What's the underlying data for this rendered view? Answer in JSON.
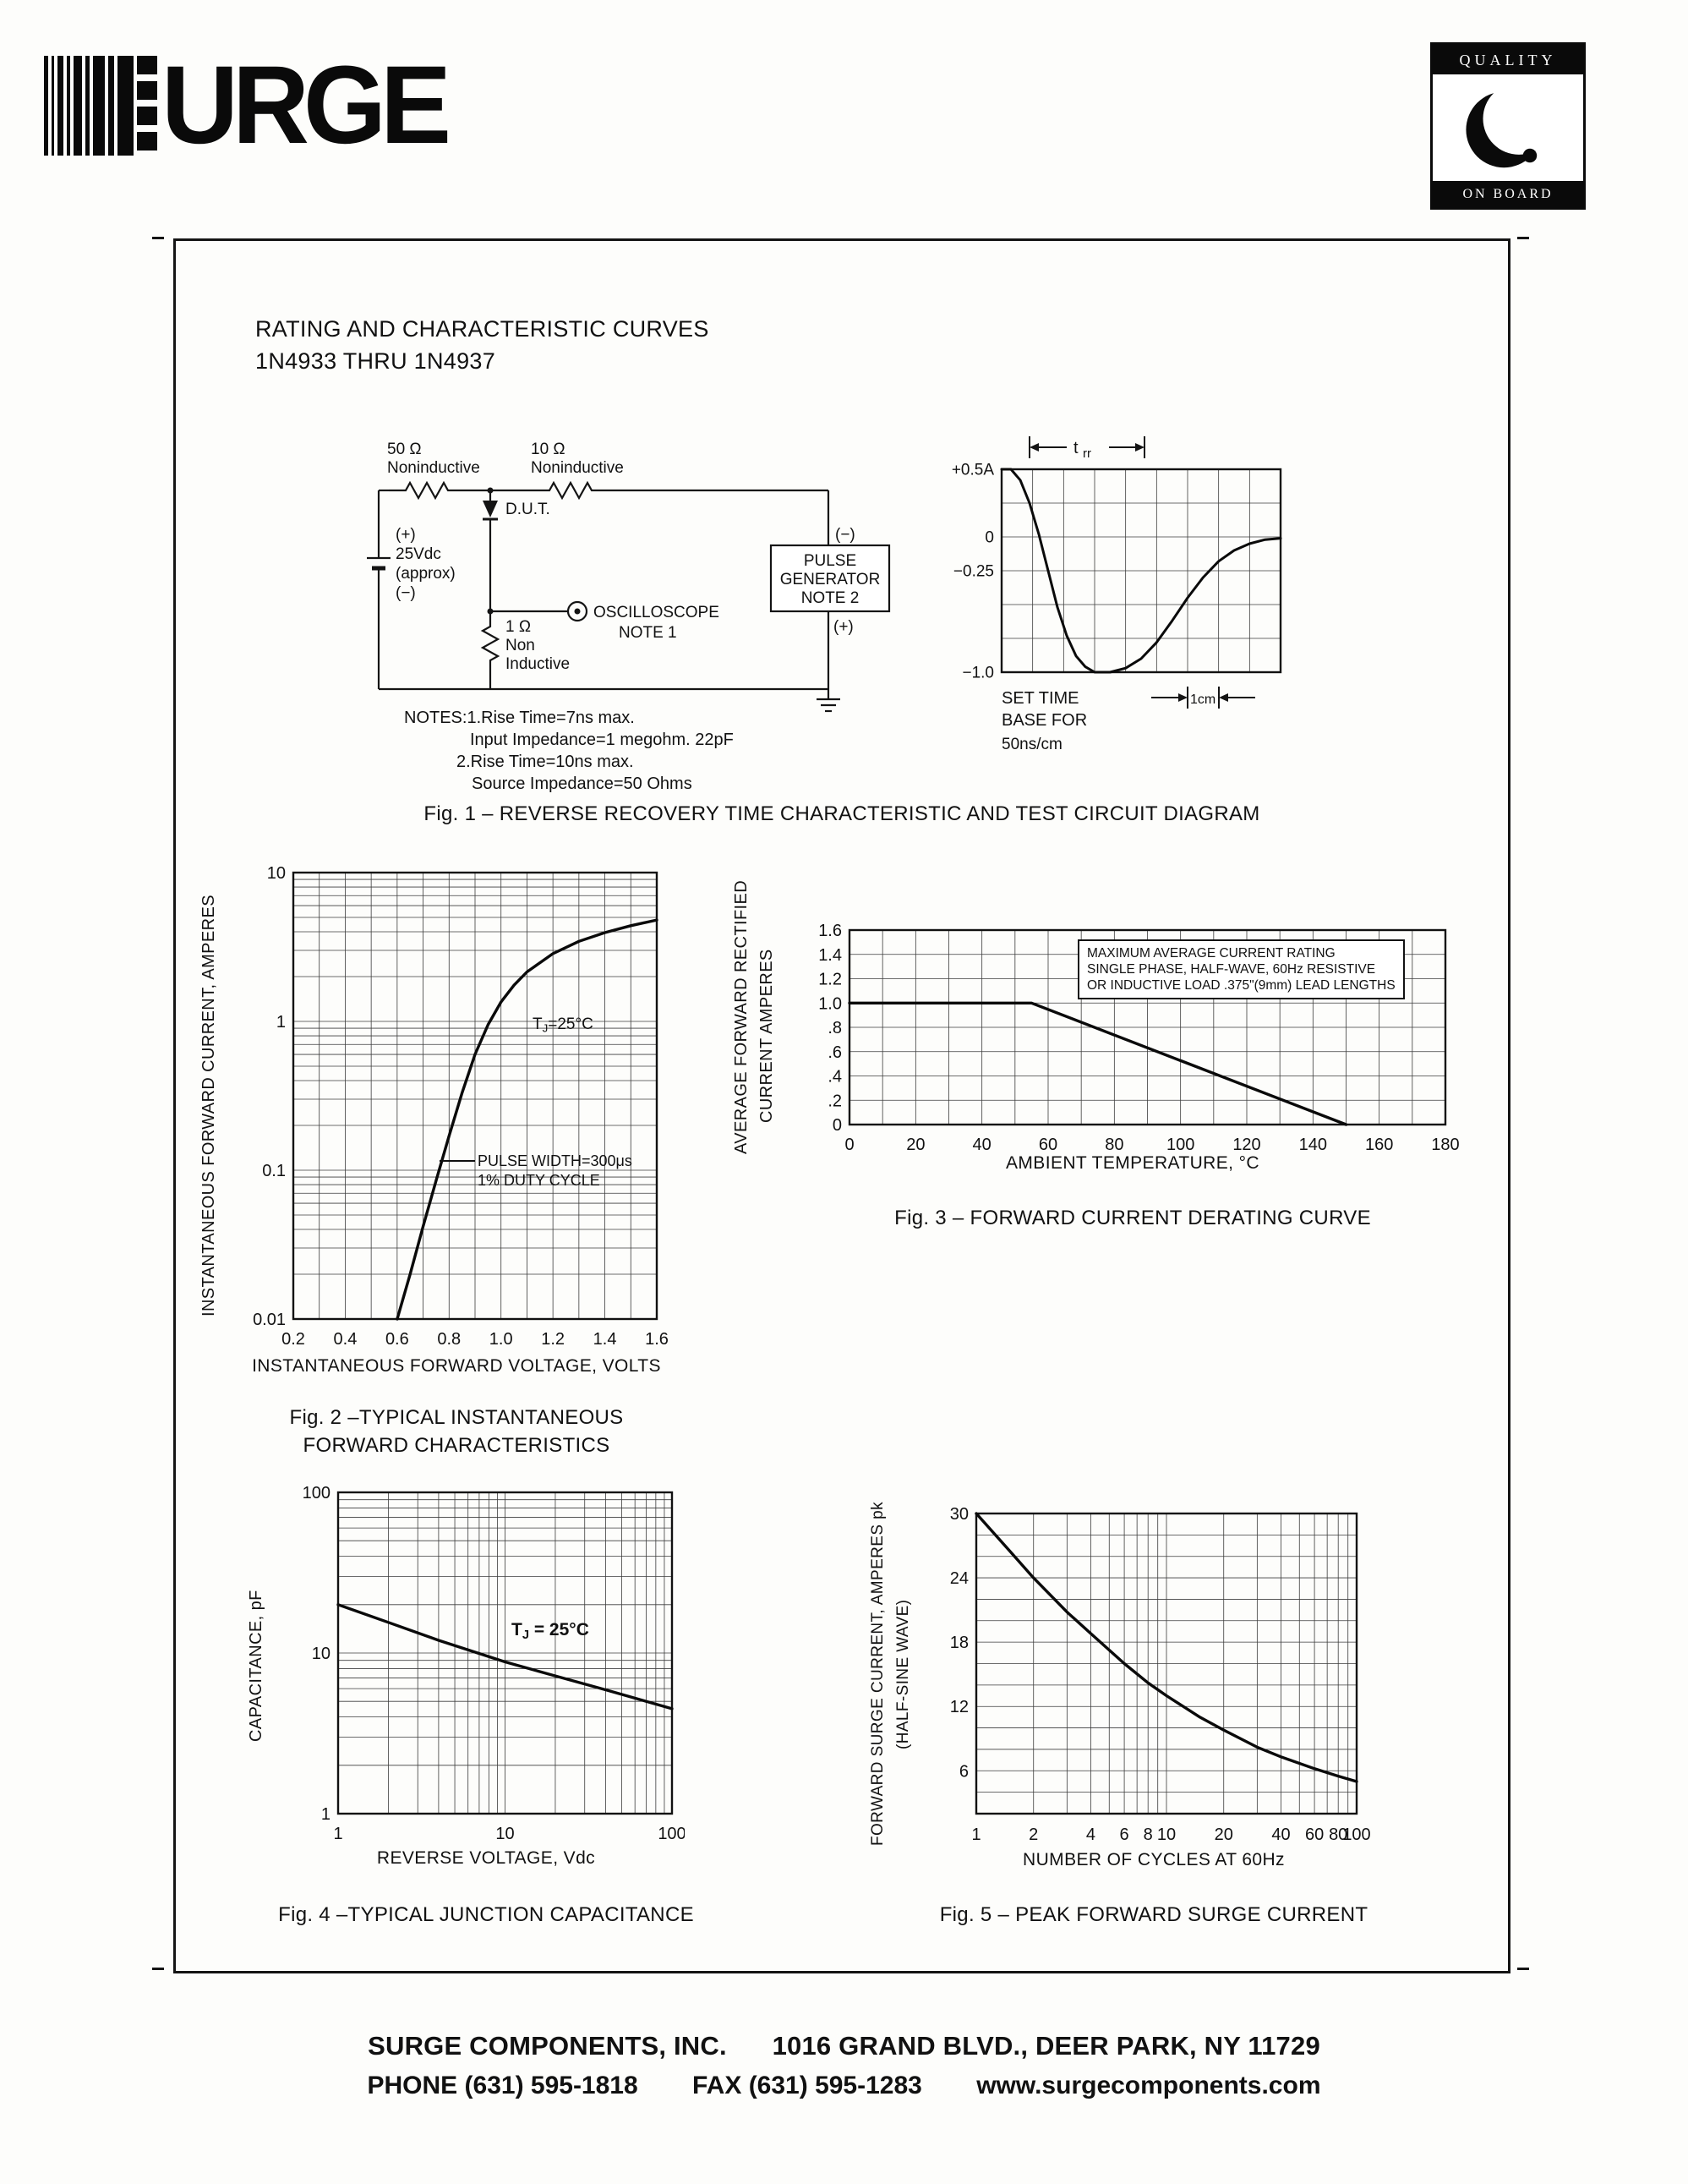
{
  "header": {
    "logo_text": "URGE",
    "quality_top": "QUALITY",
    "quality_bottom": "ON BOARD"
  },
  "doc": {
    "title_line1": "RATING AND CHARACTERISTIC CURVES",
    "title_line2": "1N4933 THRU 1N4937"
  },
  "circuit": {
    "r50_value": "50 Ω",
    "r50_note": "Noninductive",
    "r10_value": "10 Ω",
    "r10_note": "Noninductive",
    "battery_plus": "(+)",
    "battery_value": "25Vdc",
    "battery_approx": "(approx)",
    "battery_minus": "(−)",
    "dut_label": "D.U.T.",
    "r1_value": "1 Ω",
    "r1_note1": "Non",
    "r1_note2": "Inductive",
    "scope_label": "OSCILLOSCOPE",
    "scope_note": "NOTE 1",
    "pulse_line1": "PULSE",
    "pulse_line2": "GENERATOR",
    "pulse_line3": "NOTE 2",
    "pg_minus": "(−)",
    "pg_plus": "(+)",
    "notes_line1": "NOTES:1.Rise Time=7ns max.",
    "notes_line2": "Input Impedance=1 megohm. 22pF",
    "notes_line3": "2.Rise Time=10ns max.",
    "notes_line4": "Source Impedance=50 Ohms"
  },
  "chart_data": [
    {
      "id": "scope",
      "type": "line",
      "title": "Fig. 1 – REVERSE RECOVERY TIME CHARACTERISTIC AND TEST CIRCUIT DIAGRAM",
      "x": {
        "scale": "linear",
        "min": 0,
        "max": 9,
        "gridStep": 1,
        "unit": "cm (50ns/cm)",
        "ticks": []
      },
      "y": {
        "scale": "linear",
        "min": -1,
        "max": 0.5,
        "gridStep": 0.25,
        "unit": "A",
        "ticks": [
          {
            "v": 0.5,
            "t": "+0.5A"
          },
          {
            "v": 0,
            "t": "0"
          },
          {
            "v": -0.25,
            "t": "−0.25"
          },
          {
            "v": -1,
            "t": "−1.0"
          }
        ]
      },
      "series": [
        {
          "name": "reverse-recovery-current",
          "points": [
            [
              0,
              0.5
            ],
            [
              0.3,
              0.5
            ],
            [
              0.6,
              0.42
            ],
            [
              0.9,
              0.25
            ],
            [
              1.2,
              0.02
            ],
            [
              1.5,
              -0.25
            ],
            [
              1.8,
              -0.52
            ],
            [
              2.1,
              -0.73
            ],
            [
              2.4,
              -0.88
            ],
            [
              2.7,
              -0.96
            ],
            [
              3,
              -1
            ],
            [
              3.5,
              -1
            ],
            [
              4,
              -0.97
            ],
            [
              4.5,
              -0.9
            ],
            [
              5,
              -0.78
            ],
            [
              5.5,
              -0.62
            ],
            [
              6,
              -0.45
            ],
            [
              6.5,
              -0.3
            ],
            [
              7,
              -0.18
            ],
            [
              7.5,
              -0.1
            ],
            [
              8,
              -0.05
            ],
            [
              8.5,
              -0.02
            ],
            [
              9,
              -0.01
            ]
          ]
        }
      ],
      "annotations": {
        "trr_main": "t",
        "trr_sub": "rr",
        "cm": "1cm",
        "timebase": [
          "SET TIME",
          "BASE FOR",
          "50ns/cm"
        ]
      }
    },
    {
      "id": "fig2",
      "type": "line",
      "title_lines": [
        "Fig. 2 –TYPICAL INSTANTANEOUS",
        "FORWARD CHARACTERISTICS"
      ],
      "x": {
        "scale": "linear",
        "min": 0.2,
        "max": 1.6,
        "gridStep": 0.1,
        "label": "INSTANTANEOUS FORWARD VOLTAGE, VOLTS",
        "ticks": [
          {
            "v": 0.2,
            "t": "0.2"
          },
          {
            "v": 0.4,
            "t": "0.4"
          },
          {
            "v": 0.6,
            "t": "0.6"
          },
          {
            "v": 0.8,
            "t": "0.8"
          },
          {
            "v": 1,
            "t": "1.0"
          },
          {
            "v": 1.2,
            "t": "1.2"
          },
          {
            "v": 1.4,
            "t": "1.4"
          },
          {
            "v": 1.6,
            "t": "1.6"
          }
        ]
      },
      "y": {
        "scale": "log",
        "min": 0.01,
        "max": 10,
        "label": "INSTANTANEOUS FORWARD CURRENT, AMPERES",
        "ticks": [
          {
            "v": 10,
            "t": "10"
          },
          {
            "v": 1,
            "t": "1"
          },
          {
            "v": 0.1,
            "t": "0.1"
          },
          {
            "v": 0.01,
            "t": "0.01"
          }
        ]
      },
      "series": [
        {
          "name": "forward-characteristic-TJ-25C",
          "points": [
            [
              0.6,
              0.01
            ],
            [
              0.65,
              0.02
            ],
            [
              0.7,
              0.042
            ],
            [
              0.75,
              0.085
            ],
            [
              0.8,
              0.17
            ],
            [
              0.85,
              0.33
            ],
            [
              0.9,
              0.6
            ],
            [
              0.95,
              0.95
            ],
            [
              1,
              1.35
            ],
            [
              1.05,
              1.75
            ],
            [
              1.1,
              2.15
            ],
            [
              1.2,
              2.85
            ],
            [
              1.3,
              3.45
            ],
            [
              1.4,
              3.95
            ],
            [
              1.5,
              4.4
            ],
            [
              1.6,
              4.8
            ]
          ]
        }
      ],
      "annotations": {
        "tj_pre": "T",
        "tj_sub": "J",
        "tj_post": "=25°C",
        "pulse_line1": "PULSE WIDTH=300μs",
        "pulse_line2": "1% DUTY CYCLE"
      }
    },
    {
      "id": "fig3",
      "type": "line",
      "title": "Fig. 3 – FORWARD CURRENT DERATING CURVE",
      "x": {
        "scale": "linear",
        "min": 0,
        "max": 180,
        "gridStep": 10,
        "label": "AMBIENT TEMPERATURE, °C",
        "ticks": [
          {
            "v": 0,
            "t": "0"
          },
          {
            "v": 20,
            "t": "20"
          },
          {
            "v": 40,
            "t": "40"
          },
          {
            "v": 60,
            "t": "60"
          },
          {
            "v": 80,
            "t": "80"
          },
          {
            "v": 100,
            "t": "100"
          },
          {
            "v": 120,
            "t": "120"
          },
          {
            "v": 140,
            "t": "140"
          },
          {
            "v": 160,
            "t": "160"
          },
          {
            "v": 180,
            "t": "180"
          }
        ]
      },
      "y": {
        "scale": "linear",
        "min": 0,
        "max": 1.6,
        "gridStep": 0.2,
        "label_lines": [
          "AVERAGE FORWARD RECTIFIED",
          "CURRENT AMPERES"
        ],
        "ticks": [
          {
            "v": 1.6,
            "t": "1.6"
          },
          {
            "v": 1.4,
            "t": "1.4"
          },
          {
            "v": 1.2,
            "t": "1.2"
          },
          {
            "v": 1,
            "t": "1.0"
          },
          {
            "v": 0.8,
            "t": ".8"
          },
          {
            "v": 0.6,
            "t": ".6"
          },
          {
            "v": 0.4,
            "t": ".4"
          },
          {
            "v": 0.2,
            "t": ".2"
          },
          {
            "v": 0,
            "t": "0"
          }
        ]
      },
      "series": [
        {
          "name": "maximum-average-current-rating",
          "points": [
            [
              0,
              1
            ],
            [
              55,
              1
            ],
            [
              150,
              0
            ]
          ]
        }
      ],
      "annotations": {
        "note_lines": [
          "MAXIMUM AVERAGE CURRENT RATING",
          "SINGLE PHASE, HALF-WAVE, 60Hz RESISTIVE",
          "OR INDUCTIVE LOAD .375\"(9mm) LEAD LENGTHS"
        ]
      }
    },
    {
      "id": "fig4",
      "type": "line",
      "title": "Fig. 4 –TYPICAL JUNCTION CAPACITANCE",
      "x": {
        "scale": "log",
        "min": 1,
        "max": 100,
        "label": "REVERSE VOLTAGE, Vdc",
        "ticks": [
          {
            "v": 1,
            "t": "1"
          },
          {
            "v": 10,
            "t": "10"
          },
          {
            "v": 100,
            "t": "100"
          }
        ]
      },
      "y": {
        "scale": "log",
        "min": 1,
        "max": 100,
        "label": "CAPACITANCE, pF",
        "ticks": [
          {
            "v": 100,
            "t": "100"
          },
          {
            "v": 10,
            "t": "10"
          },
          {
            "v": 1,
            "t": "1"
          }
        ]
      },
      "series": [
        {
          "name": "junction-capacitance",
          "points": [
            [
              1,
              20
            ],
            [
              2,
              15.5
            ],
            [
              4,
              12
            ],
            [
              10,
              8.8
            ],
            [
              20,
              7.2
            ],
            [
              40,
              5.9
            ],
            [
              100,
              4.5
            ]
          ]
        }
      ],
      "annotations": {
        "tj_pre": "T",
        "tj_sub": "J",
        "tj_post": " = 25°C"
      }
    },
    {
      "id": "fig5",
      "type": "line",
      "title": "Fig. 5 – PEAK FORWARD SURGE CURRENT",
      "x": {
        "scale": "log",
        "min": 1,
        "max": 100,
        "label": "NUMBER OF CYCLES AT 60Hz",
        "ticks": [
          {
            "v": 1,
            "t": "1"
          },
          {
            "v": 2,
            "t": "2"
          },
          {
            "v": 4,
            "t": "4"
          },
          {
            "v": 6,
            "t": "6"
          },
          {
            "v": 8,
            "t": "8"
          },
          {
            "v": 10,
            "t": "10"
          },
          {
            "v": 20,
            "t": "20"
          },
          {
            "v": 40,
            "t": "40"
          },
          {
            "v": 60,
            "t": "60"
          },
          {
            "v": 80,
            "t": "80"
          },
          {
            "v": 100,
            "t": "100"
          }
        ]
      },
      "y": {
        "scale": "linear",
        "min": 2,
        "max": 30,
        "gridStep": 2,
        "label_lines": [
          "FORWARD SURGE CURRENT, AMPERES pk",
          "(HALF-SINE WAVE)"
        ],
        "ticks": [
          {
            "v": 30,
            "t": "30"
          },
          {
            "v": 24,
            "t": "24"
          },
          {
            "v": 18,
            "t": "18"
          },
          {
            "v": 12,
            "t": "12"
          },
          {
            "v": 6,
            "t": "6"
          }
        ]
      },
      "series": [
        {
          "name": "peak-forward-surge-current",
          "points": [
            [
              1,
              30
            ],
            [
              1.5,
              26.5
            ],
            [
              2,
              24
            ],
            [
              3,
              20.8
            ],
            [
              4,
              18.8
            ],
            [
              6,
              16
            ],
            [
              8,
              14.2
            ],
            [
              10,
              13
            ],
            [
              15,
              11
            ],
            [
              20,
              9.8
            ],
            [
              30,
              8.2
            ],
            [
              40,
              7.3
            ],
            [
              60,
              6.2
            ],
            [
              80,
              5.5
            ],
            [
              100,
              5
            ]
          ]
        }
      ]
    }
  ],
  "footer": {
    "company": "SURGE COMPONENTS, INC.",
    "address": "1016 GRAND BLVD., DEER PARK, NY  11729",
    "phone": "PHONE (631) 595-1818",
    "fax": "FAX (631) 595-1283",
    "web": "www.surgecomponents.com"
  }
}
